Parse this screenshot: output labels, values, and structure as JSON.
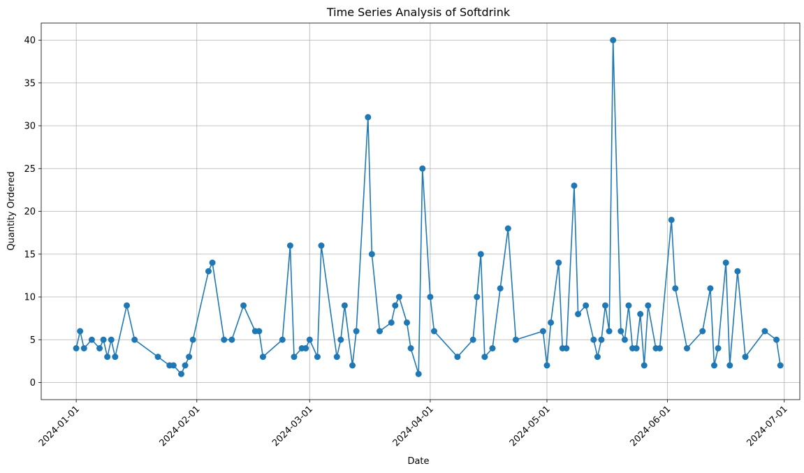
{
  "chart_data": {
    "type": "line",
    "title": "Time Series Analysis of Softdrink",
    "xlabel": "Date",
    "ylabel": "Quantity Ordered",
    "x_ticks": [
      "2024-01-01",
      "2024-02-01",
      "2024-03-01",
      "2024-04-01",
      "2024-05-01",
      "2024-06-01",
      "2024-07-01"
    ],
    "y_ticks": [
      0,
      5,
      10,
      15,
      20,
      25,
      30,
      35,
      40
    ],
    "xlim": [
      "2023-12-23",
      "2024-07-05"
    ],
    "ylim": [
      -2,
      42
    ],
    "grid": true,
    "marker": "circle",
    "color": "#1f77b4",
    "x": [
      "2024-01-01",
      "2024-01-02",
      "2024-01-03",
      "2024-01-05",
      "2024-01-07",
      "2024-01-08",
      "2024-01-09",
      "2024-01-10",
      "2024-01-11",
      "2024-01-14",
      "2024-01-16",
      "2024-01-22",
      "2024-01-25",
      "2024-01-26",
      "2024-01-28",
      "2024-01-29",
      "2024-01-30",
      "2024-01-31",
      "2024-02-04",
      "2024-02-05",
      "2024-02-08",
      "2024-02-10",
      "2024-02-13",
      "2024-02-16",
      "2024-02-17",
      "2024-02-18",
      "2024-02-23",
      "2024-02-25",
      "2024-02-26",
      "2024-02-28",
      "2024-02-29",
      "2024-03-01",
      "2024-03-03",
      "2024-03-04",
      "2024-03-08",
      "2024-03-09",
      "2024-03-10",
      "2024-03-12",
      "2024-03-13",
      "2024-03-16",
      "2024-03-17",
      "2024-03-19",
      "2024-03-22",
      "2024-03-23",
      "2024-03-24",
      "2024-03-26",
      "2024-03-27",
      "2024-03-29",
      "2024-03-30",
      "2024-04-01",
      "2024-04-02",
      "2024-04-08",
      "2024-04-12",
      "2024-04-13",
      "2024-04-14",
      "2024-04-15",
      "2024-04-17",
      "2024-04-19",
      "2024-04-21",
      "2024-04-23",
      "2024-04-30",
      "2024-05-01",
      "2024-05-02",
      "2024-05-04",
      "2024-05-05",
      "2024-05-06",
      "2024-05-08",
      "2024-05-09",
      "2024-05-11",
      "2024-05-13",
      "2024-05-14",
      "2024-05-15",
      "2024-05-16",
      "2024-05-17",
      "2024-05-18",
      "2024-05-20",
      "2024-05-21",
      "2024-05-22",
      "2024-05-23",
      "2024-05-24",
      "2024-05-25",
      "2024-05-26",
      "2024-05-27",
      "2024-05-29",
      "2024-05-30",
      "2024-06-02",
      "2024-06-03",
      "2024-06-06",
      "2024-06-10",
      "2024-06-12",
      "2024-06-13",
      "2024-06-14",
      "2024-06-16",
      "2024-06-17",
      "2024-06-19",
      "2024-06-21",
      "2024-06-26",
      "2024-06-29",
      "2024-06-30"
    ],
    "values": [
      4,
      6,
      4,
      5,
      4,
      5,
      3,
      5,
      3,
      9,
      5,
      3,
      2,
      2,
      1,
      2,
      3,
      5,
      13,
      14,
      5,
      5,
      9,
      6,
      6,
      3,
      5,
      16,
      3,
      4,
      4,
      5,
      3,
      16,
      3,
      5,
      9,
      2,
      6,
      31,
      15,
      6,
      7,
      9,
      10,
      7,
      4,
      1,
      25,
      10,
      6,
      3,
      5,
      10,
      15,
      3,
      4,
      11,
      18,
      5,
      6,
      2,
      7,
      14,
      4,
      4,
      23,
      8,
      9,
      5,
      3,
      5,
      9,
      6,
      40,
      6,
      5,
      9,
      4,
      4,
      8,
      2,
      9,
      4,
      4,
      19,
      11,
      4,
      6,
      11,
      2,
      4,
      14,
      2,
      13,
      3,
      6,
      5,
      2
    ]
  }
}
